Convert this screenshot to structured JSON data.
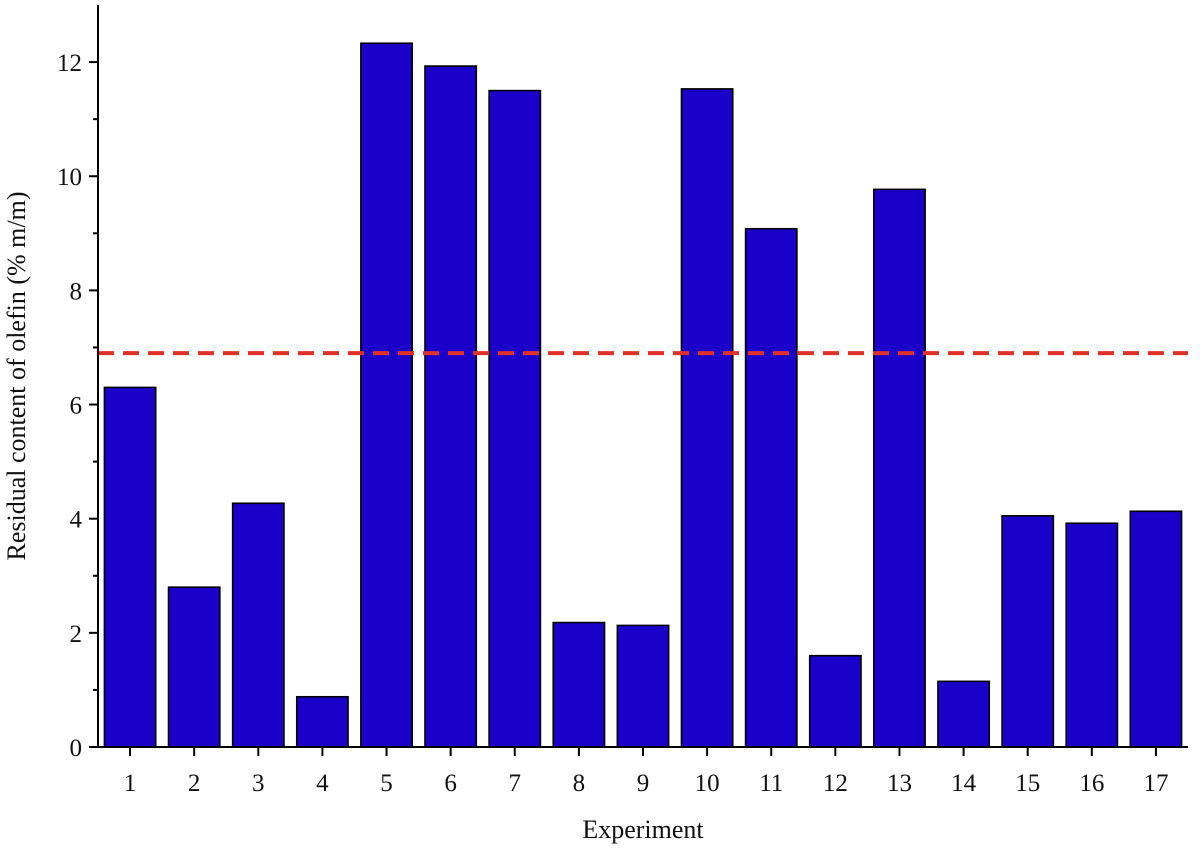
{
  "chart_data": {
    "type": "bar",
    "xlabel": "Experiment",
    "ylabel": "Residual content of olefin (% m/m)",
    "categories": [
      "1",
      "2",
      "3",
      "4",
      "5",
      "6",
      "7",
      "8",
      "9",
      "10",
      "11",
      "12",
      "13",
      "14",
      "15",
      "16",
      "17"
    ],
    "values": [
      6.3,
      2.8,
      4.27,
      0.88,
      12.33,
      11.93,
      11.5,
      2.18,
      2.13,
      11.53,
      9.08,
      1.6,
      9.77,
      1.15,
      4.05,
      3.92,
      4.13
    ],
    "ylim": [
      0,
      13
    ],
    "yticks": [
      0,
      2,
      4,
      6,
      8,
      10,
      12
    ],
    "threshold": 6.9,
    "grid": false,
    "colors": {
      "bar": "#1a00c8",
      "threshold": "#e0302a"
    }
  }
}
